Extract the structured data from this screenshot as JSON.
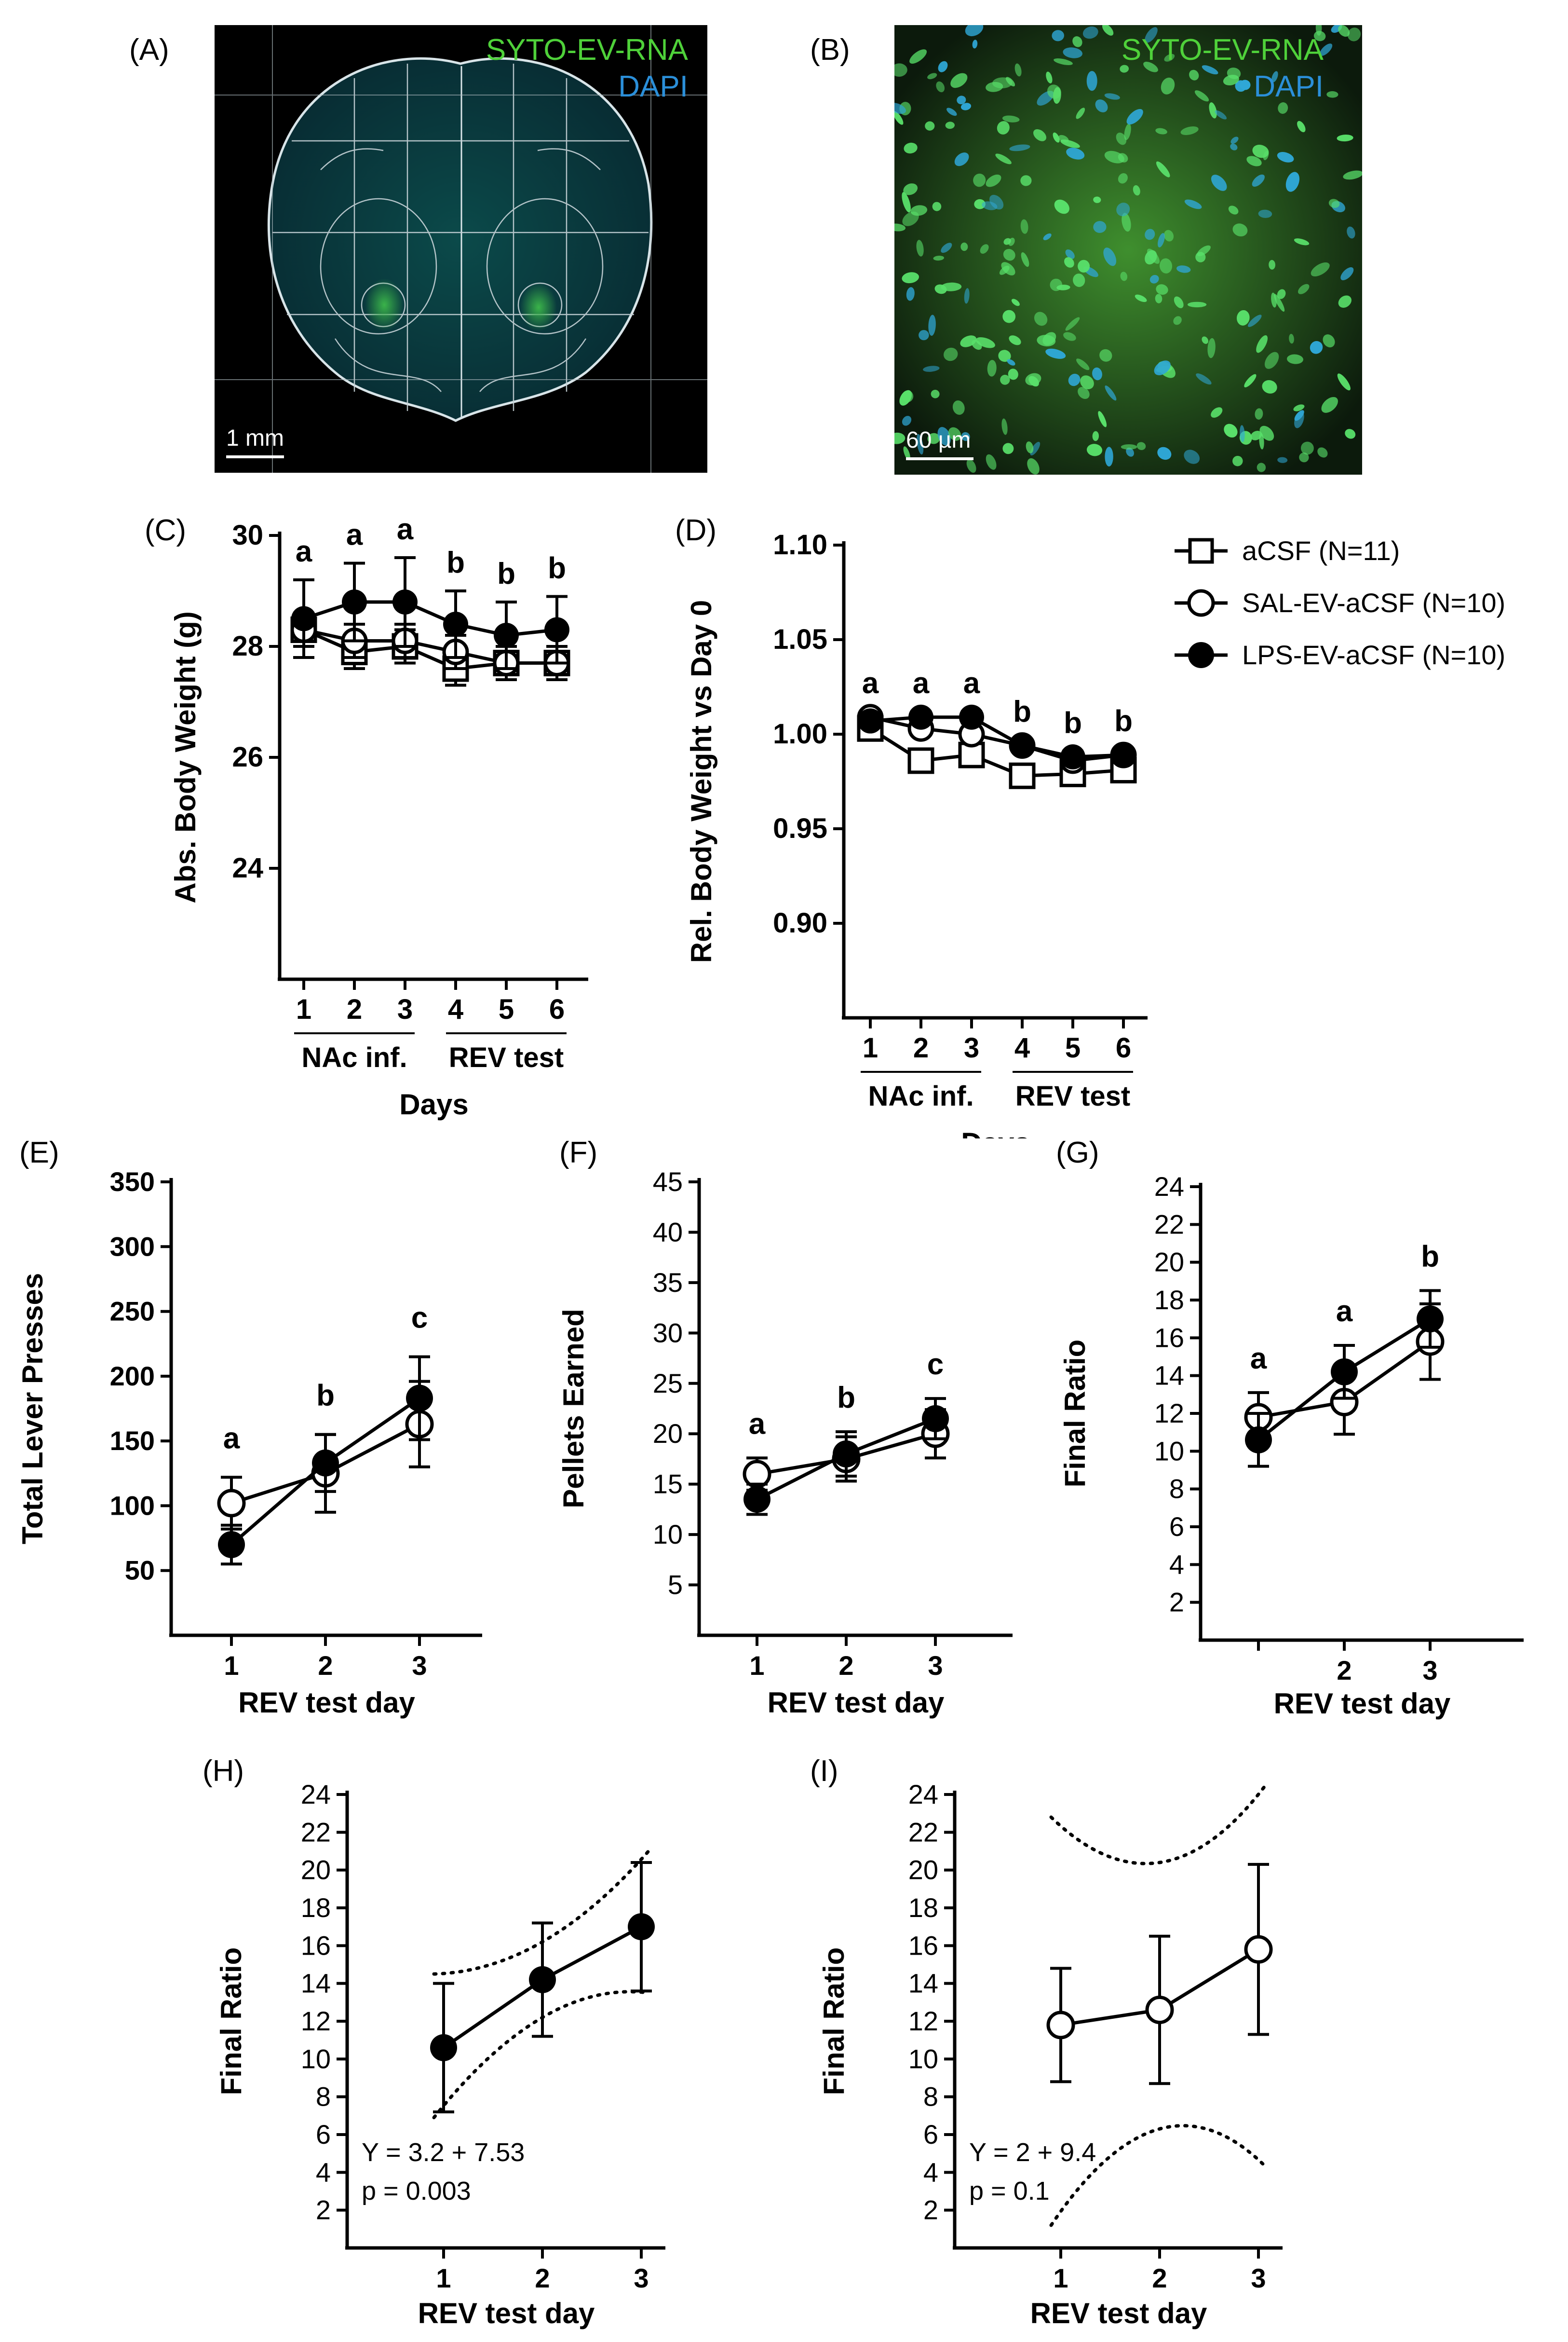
{
  "colors": {
    "syto": "#4fd13a",
    "dapi": "#2b8fd9",
    "axis": "#000000"
  },
  "panelA": {
    "label": "(A)",
    "title_green": "SYTO-EV-RNA",
    "title_blue": "DAPI",
    "scalebar": "1 mm"
  },
  "panelB": {
    "label": "(B)",
    "title_green": "SYTO-EV-RNA",
    "title_blue": "DAPI",
    "scalebar": "60 µm"
  },
  "legend": {
    "items": [
      {
        "label": "aCSF (N=11)",
        "marker": "open-square"
      },
      {
        "label": "SAL-EV-aCSF (N=10)",
        "marker": "open-circle"
      },
      {
        "label": "LPS-EV-aCSF (N=10)",
        "marker": "filled-circle"
      }
    ]
  },
  "chart_data": [
    {
      "id": "C",
      "type": "line",
      "label": "(C)",
      "ylabel": "Abs. Body Weight (g)",
      "xlabel": "Days",
      "xgroups": [
        "NAc inf.",
        "REV test"
      ],
      "categories": [
        "1",
        "2",
        "3",
        "4",
        "5",
        "6"
      ],
      "ylim": [
        22,
        30
      ],
      "yticks": [
        24,
        26,
        28,
        30
      ],
      "series": [
        {
          "name": "aCSF",
          "marker": "open-square",
          "values": [
            28.3,
            27.9,
            28.0,
            27.6,
            27.7,
            27.7
          ],
          "err": [
            0.3,
            0.3,
            0.3,
            0.3,
            0.3,
            0.3
          ]
        },
        {
          "name": "SAL-EV-aCSF",
          "marker": "open-circle",
          "values": [
            28.3,
            28.1,
            28.1,
            27.9,
            27.7,
            27.7
          ],
          "err": [
            0.2,
            0.3,
            0.3,
            0.3,
            0.3,
            0.3
          ]
        },
        {
          "name": "LPS-EV-aCSF",
          "marker": "filled-circle",
          "values": [
            28.5,
            28.8,
            28.8,
            28.4,
            28.2,
            28.3
          ],
          "err": [
            0.7,
            0.7,
            0.8,
            0.6,
            0.6,
            0.6
          ]
        }
      ],
      "annotations": [
        "a",
        "a",
        "a",
        "b",
        "b",
        "b"
      ]
    },
    {
      "id": "D",
      "type": "line",
      "label": "(D)",
      "ylabel": "Rel. Body Weight vs Day 0",
      "xlabel": "Days",
      "xgroups": [
        "NAc inf.",
        "REV test"
      ],
      "categories": [
        "1",
        "2",
        "3",
        "4",
        "5",
        "6"
      ],
      "ylim": [
        0.85,
        1.1
      ],
      "yticks": [
        0.9,
        0.95,
        1.0,
        1.05,
        1.1
      ],
      "ytick_labels": [
        "0.90",
        "0.95",
        "1.00",
        "1.05",
        "1.10"
      ],
      "series": [
        {
          "name": "aCSF",
          "marker": "open-square",
          "values": [
            1.003,
            0.986,
            0.989,
            0.978,
            0.979,
            0.981
          ],
          "err": [
            0.005,
            0.004,
            0.004,
            0.004,
            0.004,
            0.004
          ]
        },
        {
          "name": "SAL-EV-aCSF",
          "marker": "open-circle",
          "values": [
            1.009,
            1.003,
            1.0,
            0.994,
            0.986,
            0.989
          ],
          "err": [
            0.003,
            0.003,
            0.003,
            0.003,
            0.003,
            0.003
          ]
        },
        {
          "name": "LPS-EV-aCSF",
          "marker": "filled-circle",
          "values": [
            1.007,
            1.009,
            1.009,
            0.994,
            0.988,
            0.989
          ],
          "err": [
            0.003,
            0.003,
            0.003,
            0.003,
            0.003,
            0.003
          ]
        }
      ],
      "annotations": [
        "a",
        "a",
        "a",
        "b",
        "b",
        "b"
      ]
    },
    {
      "id": "E",
      "type": "line",
      "label": "(E)",
      "ylabel": "Total Lever Presses",
      "xlabel": "REV test day",
      "categories": [
        "1",
        "2",
        "3"
      ],
      "ylim": [
        0,
        350
      ],
      "yticks": [
        50,
        100,
        150,
        200,
        250,
        300,
        350
      ],
      "series": [
        {
          "name": "SAL-EV-aCSF",
          "marker": "open-circle",
          "values": [
            102,
            125,
            163
          ],
          "err": [
            20,
            30,
            33
          ]
        },
        {
          "name": "LPS-EV-aCSF",
          "marker": "filled-circle",
          "values": [
            70,
            133,
            183
          ],
          "err": [
            15,
            22,
            32
          ]
        }
      ],
      "annotations": [
        "a",
        "b",
        "c"
      ]
    },
    {
      "id": "F",
      "type": "line",
      "label": "(F)",
      "ylabel": "Pellets Earned",
      "xlabel": "REV test day",
      "categories": [
        "1",
        "2",
        "3"
      ],
      "ylim": [
        0,
        45
      ],
      "yticks": [
        5,
        10,
        15,
        20,
        25,
        30,
        35,
        40,
        45
      ],
      "series": [
        {
          "name": "SAL-EV-aCSF",
          "marker": "open-circle",
          "values": [
            16,
            17.5,
            20
          ],
          "err": [
            1.6,
            2.2,
            2.4
          ]
        },
        {
          "name": "LPS-EV-aCSF",
          "marker": "filled-circle",
          "values": [
            13.5,
            18,
            21.5
          ],
          "err": [
            1.5,
            2.2,
            2.0
          ]
        }
      ],
      "annotations": [
        "a",
        "b",
        "c"
      ]
    },
    {
      "id": "G",
      "type": "line",
      "label": "(G)",
      "ylabel": "Final Ratio",
      "xlabel": "REV test day",
      "categories": [
        "1",
        "2",
        "3"
      ],
      "xtick_labels": [
        "",
        "2",
        "3"
      ],
      "ylim": [
        0,
        24
      ],
      "yticks": [
        2,
        4,
        6,
        8,
        10,
        12,
        14,
        16,
        18,
        20,
        22,
        24
      ],
      "series": [
        {
          "name": "SAL-EV-aCSF",
          "marker": "open-circle",
          "values": [
            11.8,
            12.6,
            15.8
          ],
          "err": [
            1.3,
            1.7,
            2.0
          ]
        },
        {
          "name": "LPS-EV-aCSF",
          "marker": "filled-circle",
          "values": [
            10.6,
            14.2,
            17.0
          ],
          "err": [
            1.4,
            1.4,
            1.5
          ]
        }
      ],
      "annotations": [
        "a",
        "a",
        "b"
      ]
    },
    {
      "id": "H",
      "type": "line",
      "label": "(H)",
      "ylabel": "Final Ratio",
      "xlabel": "REV test day",
      "categories": [
        "1",
        "2",
        "3"
      ],
      "ylim": [
        0,
        24
      ],
      "yticks": [
        2,
        4,
        6,
        8,
        10,
        12,
        14,
        16,
        18,
        20,
        22,
        24
      ],
      "series": [
        {
          "name": "LPS-EV-aCSF",
          "marker": "filled-circle",
          "values": [
            10.6,
            14.2,
            17.0
          ],
          "err": [
            3.4,
            3.0,
            3.4
          ]
        }
      ],
      "regression": {
        "slope": 3.2,
        "intercept": 7.53,
        "ci_upper": [
          14.5,
          16.2,
          21.0
        ],
        "ci_lower": [
          6.9,
          12.2,
          13.5
        ]
      },
      "equation": "Y = 3.2 + 7.53",
      "pvalue": "p = 0.003"
    },
    {
      "id": "I",
      "type": "line",
      "label": "(I)",
      "ylabel": "Final Ratio",
      "xlabel": "REV test day",
      "categories": [
        "1",
        "2",
        "3"
      ],
      "ylim": [
        0,
        24
      ],
      "yticks": [
        2,
        4,
        6,
        8,
        10,
        12,
        14,
        16,
        18,
        20,
        22,
        24
      ],
      "series": [
        {
          "name": "SAL-EV-aCSF",
          "marker": "open-circle",
          "values": [
            11.8,
            12.6,
            15.8
          ],
          "err": [
            3.0,
            3.9,
            4.5
          ]
        }
      ],
      "regression": {
        "slope": 2,
        "intercept": 9.4,
        "ci_upper": [
          22.8,
          20.4,
          24.5
        ],
        "ci_lower": [
          1.2,
          6.3,
          4.3
        ]
      },
      "equation": "Y = 2 + 9.4",
      "pvalue": "p = 0.1"
    }
  ]
}
